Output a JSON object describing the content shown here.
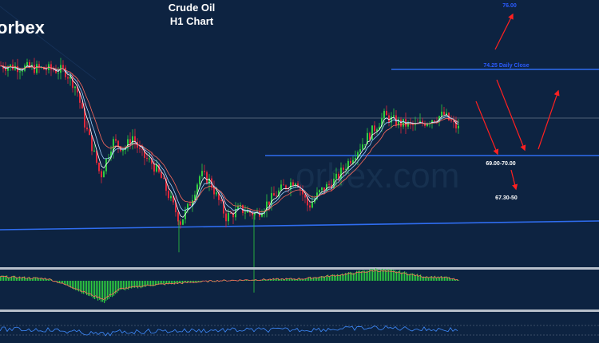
{
  "header": {
    "title": "Crude Oil",
    "subtitle": "H1 Chart",
    "brand": "orbex",
    "watermark": "orbex.com"
  },
  "colors": {
    "background": "#0d2341",
    "bull": "#2ecc40",
    "bear": "#e0283a",
    "ma_fast": "#ffffff",
    "ma_mid": "#9fd3ff",
    "ma_slow": "#ff6a5c",
    "levels": "#2f6df0",
    "grid": "#8a97a8",
    "panel_sep": "#b7bfca",
    "arrows": "#ff2020",
    "target_text": "#2a5bff",
    "level_text": "#ffffff",
    "rsi": "#3f8cff"
  },
  "chart_data": {
    "type": "candlestick",
    "title": "Crude Oil",
    "subtitle": "H1 Chart",
    "annotations": [
      {
        "key": "target",
        "text": "76.00"
      },
      {
        "key": "daily_close",
        "text": "74.25 Daily Close"
      },
      {
        "key": "support",
        "text": "69.00-70.00"
      },
      {
        "key": "support2",
        "text": "67.30-50"
      }
    ],
    "price_path": [
      [
        0,
        73.9
      ],
      [
        40,
        73.8
      ],
      [
        80,
        73.7
      ],
      [
        95,
        73.0
      ],
      [
        105,
        71.6
      ],
      [
        115,
        70.6
      ],
      [
        125,
        69.5
      ],
      [
        140,
        70.9
      ],
      [
        155,
        70.6
      ],
      [
        165,
        71.1
      ],
      [
        175,
        70.4
      ],
      [
        190,
        70.0
      ],
      [
        200,
        69.5
      ],
      [
        215,
        68.4
      ],
      [
        225,
        67.7
      ],
      [
        235,
        68.3
      ],
      [
        250,
        69.6
      ],
      [
        262,
        69.3
      ],
      [
        272,
        68.6
      ],
      [
        282,
        67.9
      ],
      [
        300,
        68.2
      ],
      [
        320,
        68.0
      ],
      [
        335,
        68.5
      ],
      [
        355,
        69.1
      ],
      [
        370,
        69.4
      ],
      [
        385,
        68.3
      ],
      [
        400,
        68.9
      ],
      [
        420,
        69.4
      ],
      [
        440,
        70.3
      ],
      [
        460,
        71.1
      ],
      [
        480,
        71.9
      ],
      [
        500,
        71.6
      ],
      [
        520,
        71.5
      ],
      [
        540,
        71.8
      ],
      [
        555,
        71.95
      ],
      [
        565,
        71.6
      ],
      [
        575,
        71.35
      ]
    ],
    "y_range": [
      66.0,
      76.5
    ],
    "histogram_profile": [
      [
        0,
        0.2
      ],
      [
        60,
        0.1
      ],
      [
        90,
        -0.3
      ],
      [
        115,
        -0.7
      ],
      [
        130,
        -0.9
      ],
      [
        150,
        -0.4
      ],
      [
        190,
        -0.2
      ],
      [
        230,
        -0.1
      ],
      [
        270,
        0.0
      ],
      [
        320,
        0.05
      ],
      [
        380,
        0.1
      ],
      [
        430,
        0.3
      ],
      [
        470,
        0.5
      ],
      [
        500,
        0.4
      ],
      [
        530,
        0.2
      ],
      [
        560,
        0.15
      ],
      [
        575,
        0.0
      ]
    ]
  }
}
